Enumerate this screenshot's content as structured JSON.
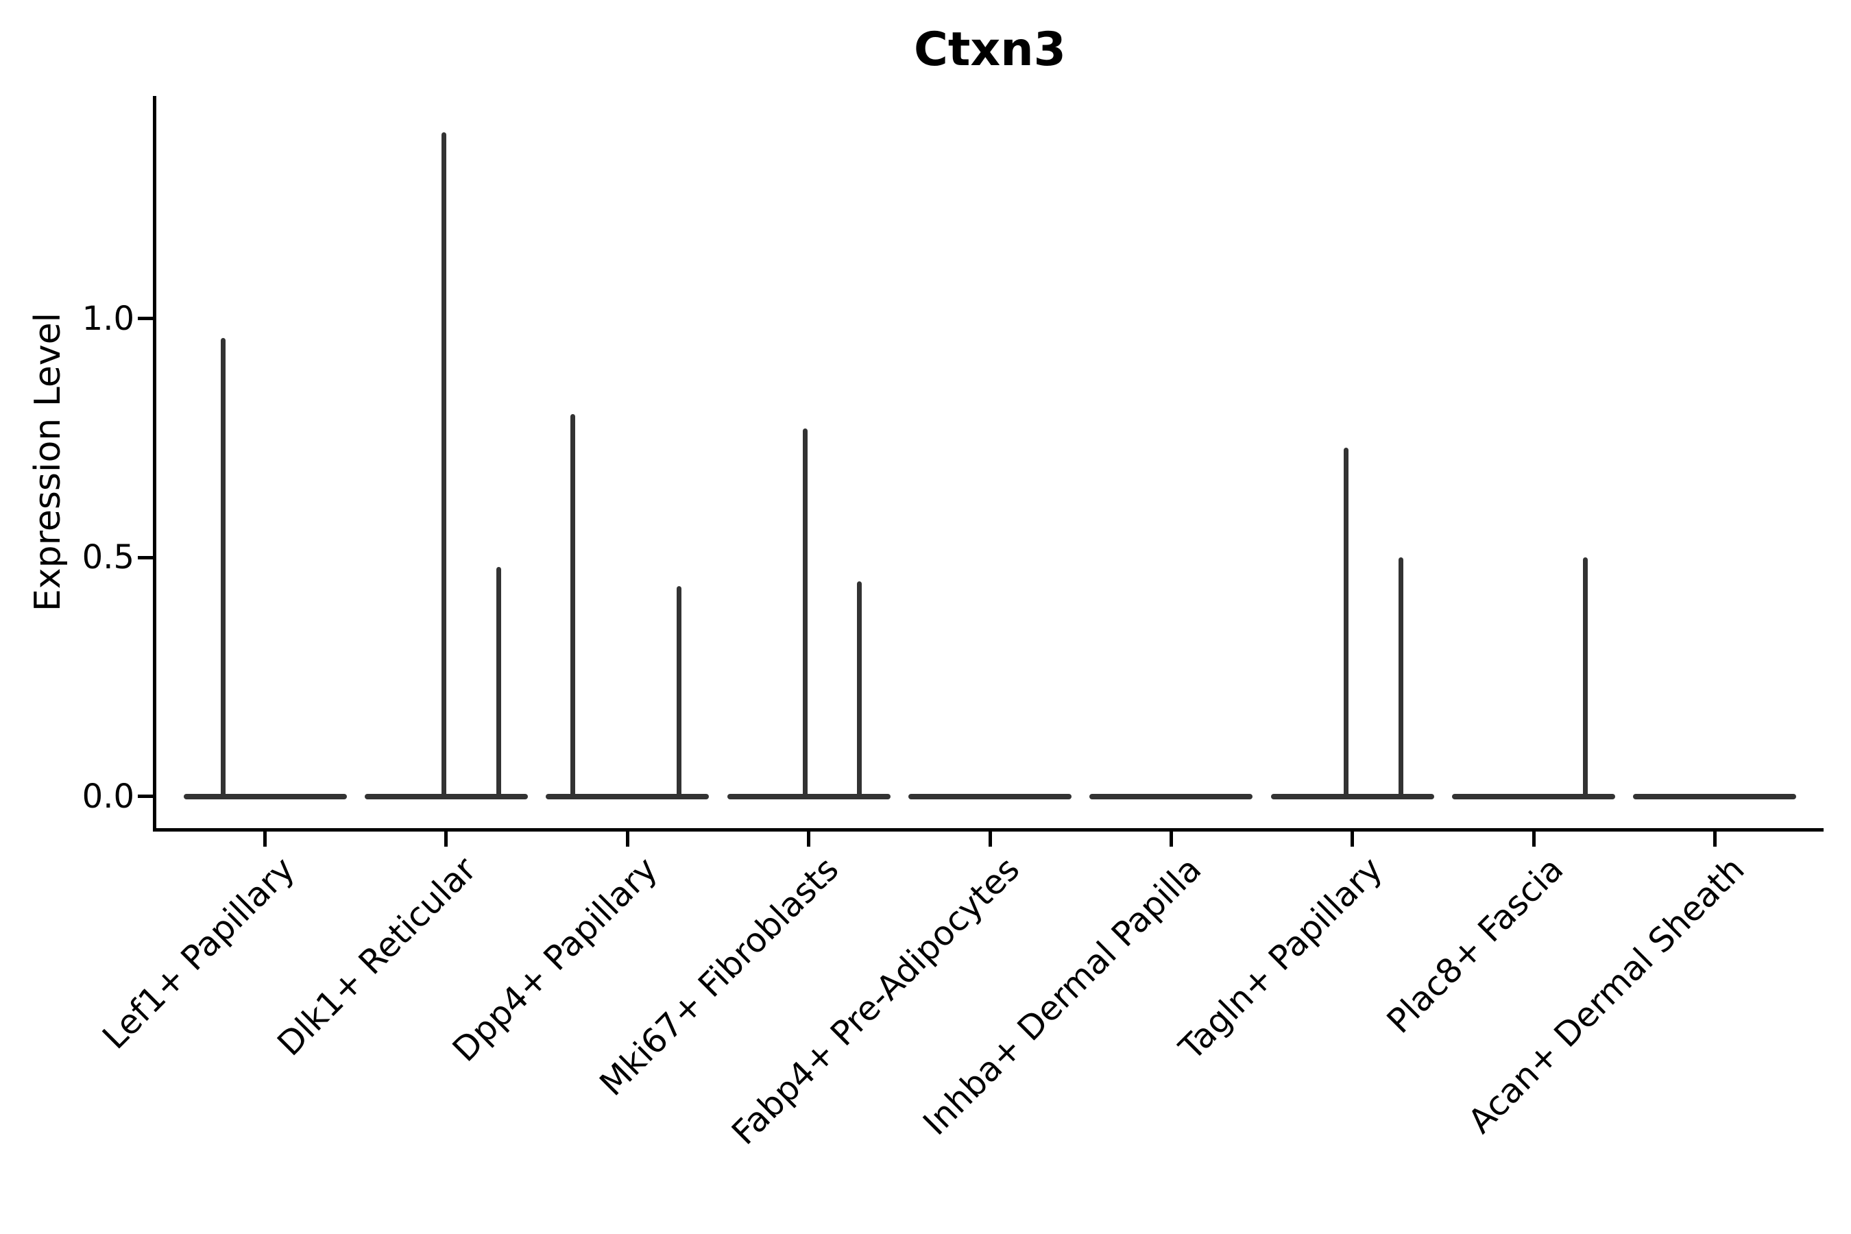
{
  "title": "Ctxn3",
  "colors": {
    "violin": "#333333",
    "axis": "#000000",
    "background": "#ffffff",
    "title_text": "#000000"
  },
  "chart_data": {
    "type": "violin",
    "title": "Ctxn3",
    "xlabel": "",
    "ylabel": "Expression Level",
    "ylim": [
      -0.066,
      1.466
    ],
    "yticks": [
      {
        "value": 0.0,
        "label": "0.0"
      },
      {
        "value": 0.5,
        "label": "0.5"
      },
      {
        "value": 1.0,
        "label": "1.0"
      }
    ],
    "grid": false,
    "legend_position": "none",
    "x_tick_rotation_deg": 45,
    "categories": [
      "Lef1+ Papillary",
      "Dlk1+ Reticular",
      "Dpp4+ Papillary",
      "Mki67+ Fibroblasts",
      "Fabp4+ Pre-Adipocytes",
      "Inhba+ Dermal Papilla",
      "Tagln+ Papillary",
      "Plac8+ Fascia",
      "Acan+ Dermal Sheath"
    ],
    "violins": [
      {
        "category": "Lef1+ Papillary",
        "body_halfwidth_units": 0.45,
        "baseline_value": 0.0,
        "max_expression": 0.96,
        "spikes": [
          {
            "offset_units": -0.233,
            "value": 0.96
          }
        ]
      },
      {
        "category": "Dlk1+ Reticular",
        "body_halfwidth_units": 0.45,
        "baseline_value": 0.0,
        "max_expression": 1.39,
        "spikes": [
          {
            "offset_units": -0.014,
            "value": 1.39
          },
          {
            "offset_units": 0.288,
            "value": 0.48
          }
        ]
      },
      {
        "category": "Dpp4+ Papillary",
        "body_halfwidth_units": 0.45,
        "baseline_value": 0.0,
        "max_expression": 0.8,
        "spikes": [
          {
            "offset_units": -0.303,
            "value": 0.8
          },
          {
            "offset_units": 0.283,
            "value": 0.44
          }
        ]
      },
      {
        "category": "Mki67+ Fibroblasts",
        "body_halfwidth_units": 0.45,
        "baseline_value": 0.0,
        "max_expression": 0.77,
        "spikes": [
          {
            "offset_units": -0.021,
            "value": 0.77
          },
          {
            "offset_units": 0.278,
            "value": 0.45
          }
        ]
      },
      {
        "category": "Fabp4+ Pre-Adipocytes",
        "body_halfwidth_units": 0.45,
        "baseline_value": 0.0,
        "max_expression": 0.0,
        "spikes": []
      },
      {
        "category": "Inhba+ Dermal Papilla",
        "body_halfwidth_units": 0.45,
        "baseline_value": 0.0,
        "max_expression": 0.0,
        "spikes": []
      },
      {
        "category": "Tagln+ Papillary",
        "body_halfwidth_units": 0.45,
        "baseline_value": 0.0,
        "max_expression": 0.73,
        "spikes": [
          {
            "offset_units": -0.036,
            "value": 0.73
          },
          {
            "offset_units": 0.267,
            "value": 0.5
          }
        ]
      },
      {
        "category": "Plac8+ Fascia",
        "body_halfwidth_units": 0.45,
        "baseline_value": 0.0,
        "max_expression": 0.5,
        "spikes": [
          {
            "offset_units": 0.285,
            "value": 0.5
          }
        ]
      },
      {
        "category": "Acan+ Dermal Sheath",
        "body_halfwidth_units": 0.45,
        "baseline_value": 0.0,
        "max_expression": 0.0,
        "spikes": []
      }
    ]
  }
}
